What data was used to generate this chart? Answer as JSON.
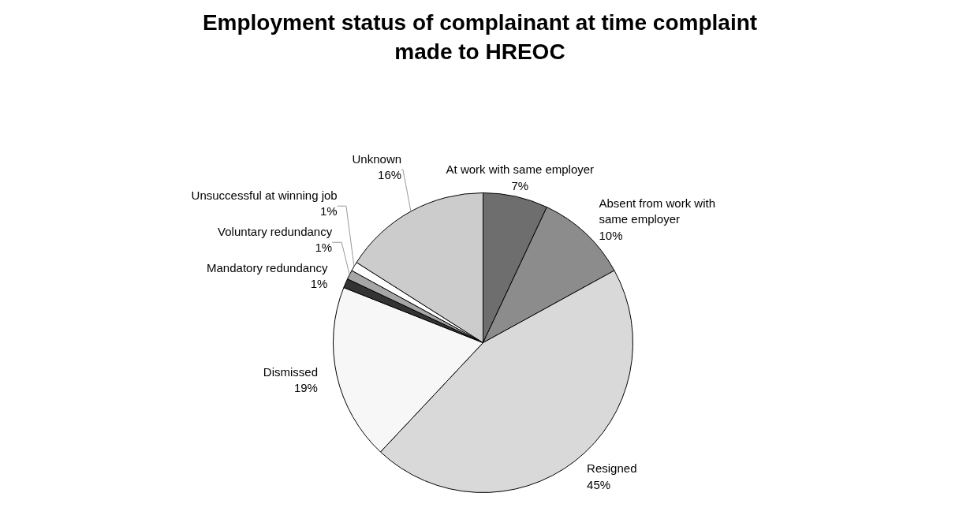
{
  "chart_data": {
    "type": "pie",
    "title": "Employment status of complainant at time complaint made to HREOC",
    "categories": [
      "At work with same employer",
      "Absent from work with same employer",
      "Resigned",
      "Dismissed",
      "Mandatory redundancy",
      "Voluntary redundancy",
      "Unsuccessful at winning job",
      "Unknown"
    ],
    "values": [
      7,
      10,
      45,
      19,
      1,
      1,
      1,
      16
    ],
    "colors": [
      "#6e6e6e",
      "#8c8c8c",
      "#d9d9d9",
      "#f7f7f7",
      "#333333",
      "#a6a6a6",
      "#ffffff",
      "#cccccc"
    ],
    "value_labels": [
      "7%",
      "10%",
      "45%",
      "19%",
      "1%",
      "1%",
      "1%",
      "16%"
    ]
  }
}
